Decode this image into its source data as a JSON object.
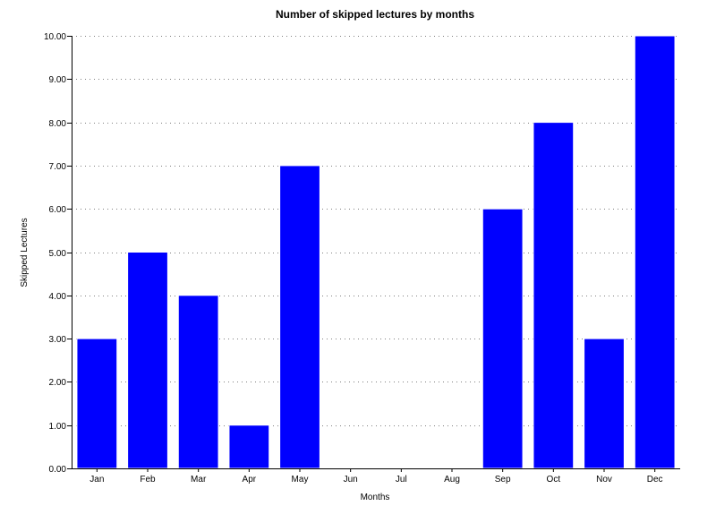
{
  "chart_data": {
    "type": "bar",
    "title": "Number of skipped lectures by months",
    "xlabel": "Months",
    "ylabel": "Skipped Lectures",
    "categories": [
      "Jan",
      "Feb",
      "Mar",
      "Apr",
      "May",
      "Jun",
      "Jul",
      "Aug",
      "Sep",
      "Oct",
      "Nov",
      "Dec"
    ],
    "values": [
      3,
      5,
      4,
      1,
      7,
      0,
      0,
      0,
      6,
      8,
      3,
      10
    ],
    "ylim": [
      0,
      10
    ],
    "yticks": [
      "0.00",
      "1.00",
      "2.00",
      "3.00",
      "4.00",
      "5.00",
      "6.00",
      "7.00",
      "8.00",
      "9.00",
      "10.00"
    ],
    "grid": true,
    "bar_color": "#0000ff"
  }
}
